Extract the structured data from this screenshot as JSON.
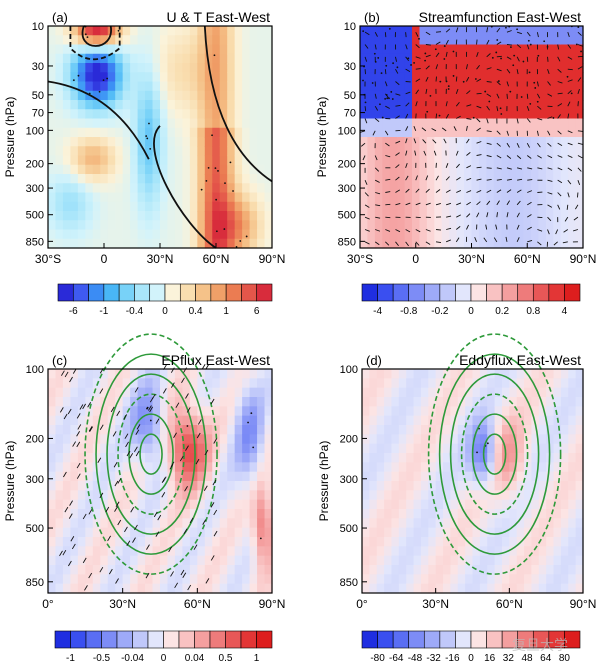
{
  "chart_data": [
    {
      "type": "heatmap",
      "panel_label": "(a)",
      "title": "U & T East-West",
      "ylabel": "Pressure (hPa)",
      "y_ticks": [
        "10",
        "30",
        "50",
        "70",
        "100",
        "200",
        "300",
        "500",
        "850"
      ],
      "x_ticks": [
        "30°S",
        "0",
        "30°N",
        "60°N",
        "90°N"
      ],
      "colorbar_labels": [
        "-6",
        "-1",
        "-0.4",
        "0",
        "0.4",
        "1",
        "6"
      ],
      "colorbar_colors": [
        "#2a2ad8",
        "#3f5af0",
        "#3b8cf4",
        "#49b6f6",
        "#78d2f8",
        "#a9e6fa",
        "#d2f3fb",
        "#fbf3da",
        "#f9deb0",
        "#f5c289",
        "#f0a068",
        "#eb7c52",
        "#e4564a",
        "#d82c3c"
      ]
    },
    {
      "type": "heatmap",
      "panel_label": "(b)",
      "title": "Streamfunction East-West",
      "ylabel": "Pressure (hPa)",
      "y_ticks": [
        "10",
        "30",
        "50",
        "70",
        "100",
        "200",
        "300",
        "500",
        "850"
      ],
      "x_ticks": [
        "30°S",
        "0",
        "30°N",
        "60°N",
        "90°N"
      ],
      "colorbar_labels": [
        "-4",
        "-0.8",
        "-0.2",
        "0",
        "0.2",
        "0.8",
        "4"
      ],
      "colorbar_colors": [
        "#1f2ee0",
        "#3a4ff0",
        "#5a6ef4",
        "#7d8cf6",
        "#9eaaf8",
        "#c0c8fa",
        "#e2e6fc",
        "#fce4e4",
        "#f9c2c2",
        "#f49f9f",
        "#ee7b7b",
        "#e85757",
        "#e33636",
        "#dd1e1e"
      ]
    },
    {
      "type": "heatmap",
      "panel_label": "(c)",
      "title": "EPflux East-West",
      "ylabel": "Pressure (hPa)",
      "y_ticks": [
        "100",
        "200",
        "300",
        "500",
        "850"
      ],
      "x_ticks": [
        "0°",
        "30°N",
        "60°N",
        "90°N"
      ],
      "colorbar_labels": [
        "-1",
        "-0.5",
        "-0.04",
        "0",
        "0.04",
        "0.5",
        "1"
      ],
      "colorbar_colors": [
        "#1f2ee0",
        "#3a4ff0",
        "#5a6ef4",
        "#7d8cf6",
        "#9eaaf8",
        "#c0c8fa",
        "#e2e6fc",
        "#fce4e4",
        "#f9c2c2",
        "#f49f9f",
        "#ee7b7b",
        "#e85757",
        "#e33636",
        "#dd1e1e"
      ]
    },
    {
      "type": "heatmap",
      "panel_label": "(d)",
      "title": "Eddyflux East-West",
      "ylabel": "Pressure (hPa)",
      "y_ticks": [
        "100",
        "200",
        "300",
        "500",
        "850"
      ],
      "x_ticks": [
        "0°",
        "30°N",
        "60°N",
        "90°N"
      ],
      "colorbar_labels": [
        "-80",
        "-64",
        "-48",
        "-32",
        "-16",
        "0",
        "16",
        "32",
        "48",
        "64",
        "80"
      ],
      "colorbar_colors": [
        "#1f2ee0",
        "#3a4ff0",
        "#5a6ef4",
        "#7d8cf6",
        "#9eaaf8",
        "#c0c8fa",
        "#e2e6fc",
        "#fce4e4",
        "#f9c2c2",
        "#f49f9f",
        "#ee7b7b",
        "#e85757",
        "#e33636",
        "#dd1e1e"
      ]
    }
  ],
  "watermark": "复旦大学"
}
